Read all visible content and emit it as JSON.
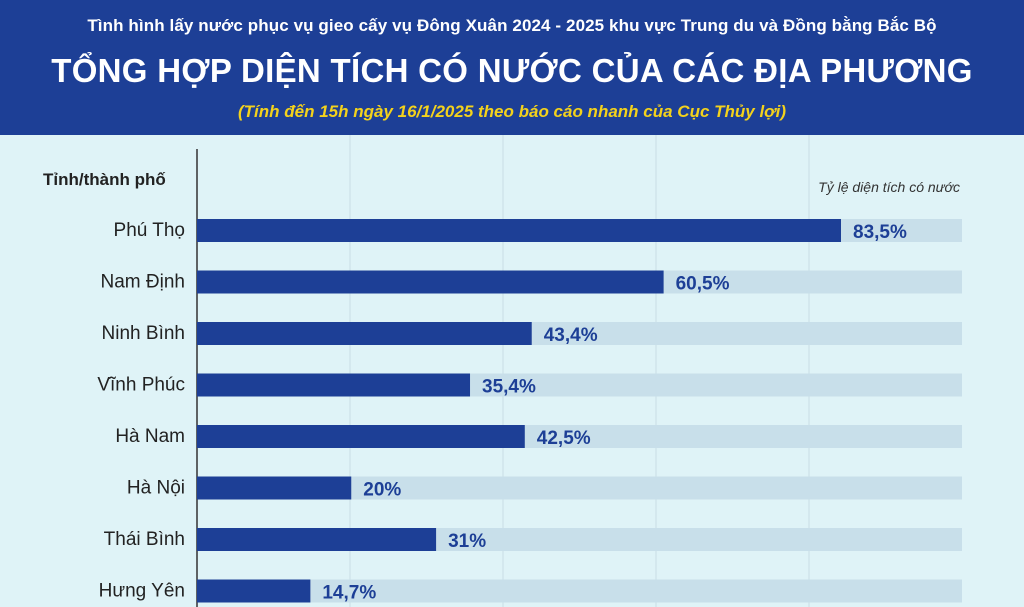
{
  "header": {
    "super_title": "Tình hình lấy nước phục vụ gieo cấy vụ Đông Xuân 2024 - 2025 khu vực Trung du và Đồng bằng Bắc Bộ",
    "title": "TỔNG HỢP DIỆN TÍCH CÓ NƯỚC CỦA CÁC ĐỊA PHƯƠNG",
    "subtitle": "(Tính đến 15h ngày 16/1/2025 theo báo cáo nhanh của Cục Thủy lợi)"
  },
  "colors": {
    "header_bg": "#1d3f96",
    "subtitle": "#f3d21c",
    "background": "#dff3f7",
    "bar": "#1d3f96",
    "track": "#c8dfea",
    "value_text": "#1d3f96"
  },
  "chart_data": {
    "type": "bar",
    "orientation": "horizontal",
    "category_header": "Tỉnh/thành phố",
    "value_header": "Tỷ lệ diện tích có nước",
    "categories": [
      "Phú Thọ",
      "Nam Định",
      "Ninh Bình",
      "Vĩnh Phúc",
      "Hà Nam",
      "Hà Nội",
      "Thái Bình",
      "Hưng Yên"
    ],
    "values": [
      83.5,
      60.5,
      43.4,
      35.4,
      42.5,
      20,
      31,
      14.7
    ],
    "value_labels": [
      "83,5%",
      "60,5%",
      "43,4%",
      "35,4%",
      "42,5%",
      "20%",
      "31%",
      "14,7%"
    ],
    "unit": "%",
    "xlim": [
      0,
      100
    ],
    "grid": true
  }
}
